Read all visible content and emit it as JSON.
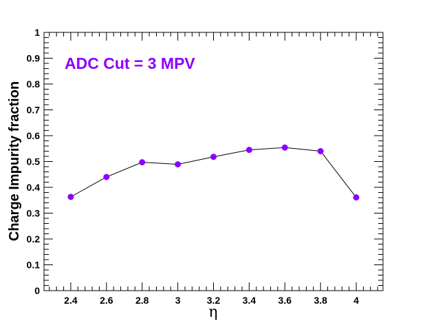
{
  "chart_data": {
    "type": "line",
    "title": "",
    "annotation": "ADC Cut = 3 MPV",
    "xlabel": "η",
    "ylabel": "Charge Impurity fraction",
    "xlim": [
      2.25,
      4.15
    ],
    "ylim": [
      0,
      1
    ],
    "xticks": [
      "2.4",
      "2.6",
      "2.8",
      "3",
      "3.2",
      "3.4",
      "3.6",
      "3.8",
      "4"
    ],
    "yticks": [
      "0",
      "0.1",
      "0.2",
      "0.3",
      "0.4",
      "0.5",
      "0.6",
      "0.7",
      "0.8",
      "0.9",
      "1"
    ],
    "grid": false,
    "series": [
      {
        "x": [
          2.4,
          2.6,
          2.8,
          3.0,
          3.2,
          3.4,
          3.6,
          3.8,
          4.0
        ],
        "y": [
          0.363,
          0.44,
          0.497,
          0.489,
          0.518,
          0.545,
          0.554,
          0.54,
          0.361
        ]
      }
    ],
    "colors": {
      "marker": "#8B00FF",
      "line": "#000000",
      "annotation": "#8B00FF"
    }
  }
}
